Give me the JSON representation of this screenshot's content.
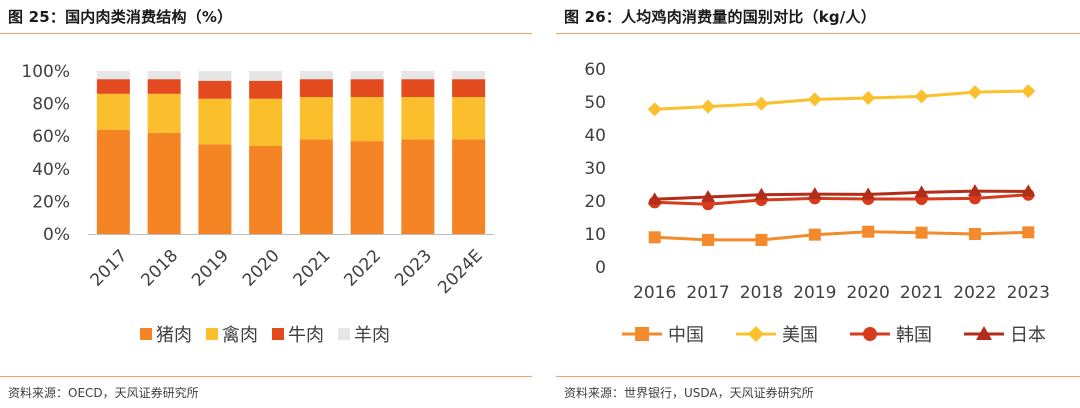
{
  "colors": {
    "accent_rule": "#f0a46a",
    "pork": "#f48424",
    "poultry": "#fbbf2d",
    "beef": "#e34a1d",
    "mutton": "#e6e6e6",
    "china": "#f38a2c",
    "usa": "#fbc02d",
    "korea": "#d63b1b",
    "japan": "#b22d1a"
  },
  "left": {
    "title": "图 25：国内肉类消费结构（%）",
    "source": "资料来源：OECD，天风证券研究所"
  },
  "right": {
    "title": "图 26：人均鸡肉消费量的国别对比（kg/人）",
    "source": "资料来源：世界银行，USDA，天风证券研究所"
  },
  "chart_data": [
    {
      "type": "bar",
      "stacked": true,
      "categories": [
        "2017",
        "2018",
        "2019",
        "2020",
        "2021",
        "2022",
        "2023",
        "2024E"
      ],
      "series": [
        {
          "name": "猪肉",
          "values": [
            64,
            62,
            55,
            54,
            58,
            57,
            58,
            58
          ],
          "color": "#f48424"
        },
        {
          "name": "禽肉",
          "values": [
            22,
            24,
            28,
            29,
            26,
            27,
            26,
            26
          ],
          "color": "#fbbf2d"
        },
        {
          "name": "牛肉",
          "values": [
            9,
            9,
            11,
            11,
            11,
            11,
            11,
            11
          ],
          "color": "#e34a1d"
        },
        {
          "name": "羊肉",
          "values": [
            5,
            5,
            6,
            6,
            5,
            5,
            5,
            5
          ],
          "color": "#e6e6e6"
        }
      ],
      "yticks": [
        "0%",
        "20%",
        "40%",
        "60%",
        "80%",
        "100%"
      ],
      "ylim": [
        0,
        100
      ],
      "grid": false,
      "legend_position": "bottom"
    },
    {
      "type": "line",
      "x": [
        "2016",
        "2017",
        "2018",
        "2019",
        "2020",
        "2021",
        "2022",
        "2023"
      ],
      "series": [
        {
          "name": "中国",
          "values": [
            9.0,
            8.2,
            8.2,
            9.8,
            10.7,
            10.4,
            10.0,
            10.5
          ],
          "marker": "square",
          "color": "#f38a2c"
        },
        {
          "name": "美国",
          "values": [
            47.8,
            48.6,
            49.5,
            50.8,
            51.2,
            51.7,
            53.0,
            53.3
          ],
          "marker": "diamond",
          "color": "#fbc02d"
        },
        {
          "name": "韩国",
          "values": [
            19.6,
            19.0,
            20.3,
            20.8,
            20.6,
            20.6,
            20.8,
            21.9
          ],
          "marker": "circle",
          "color": "#d63b1b"
        },
        {
          "name": "日本",
          "values": [
            20.5,
            21.2,
            21.9,
            22.1,
            22.0,
            22.6,
            23.0,
            22.9
          ],
          "marker": "triangle",
          "color": "#b22d1a"
        }
      ],
      "yticks": [
        "0",
        "10",
        "20",
        "30",
        "40",
        "50",
        "60"
      ],
      "ylim": [
        0,
        60
      ],
      "grid": false,
      "legend_position": "bottom"
    }
  ]
}
